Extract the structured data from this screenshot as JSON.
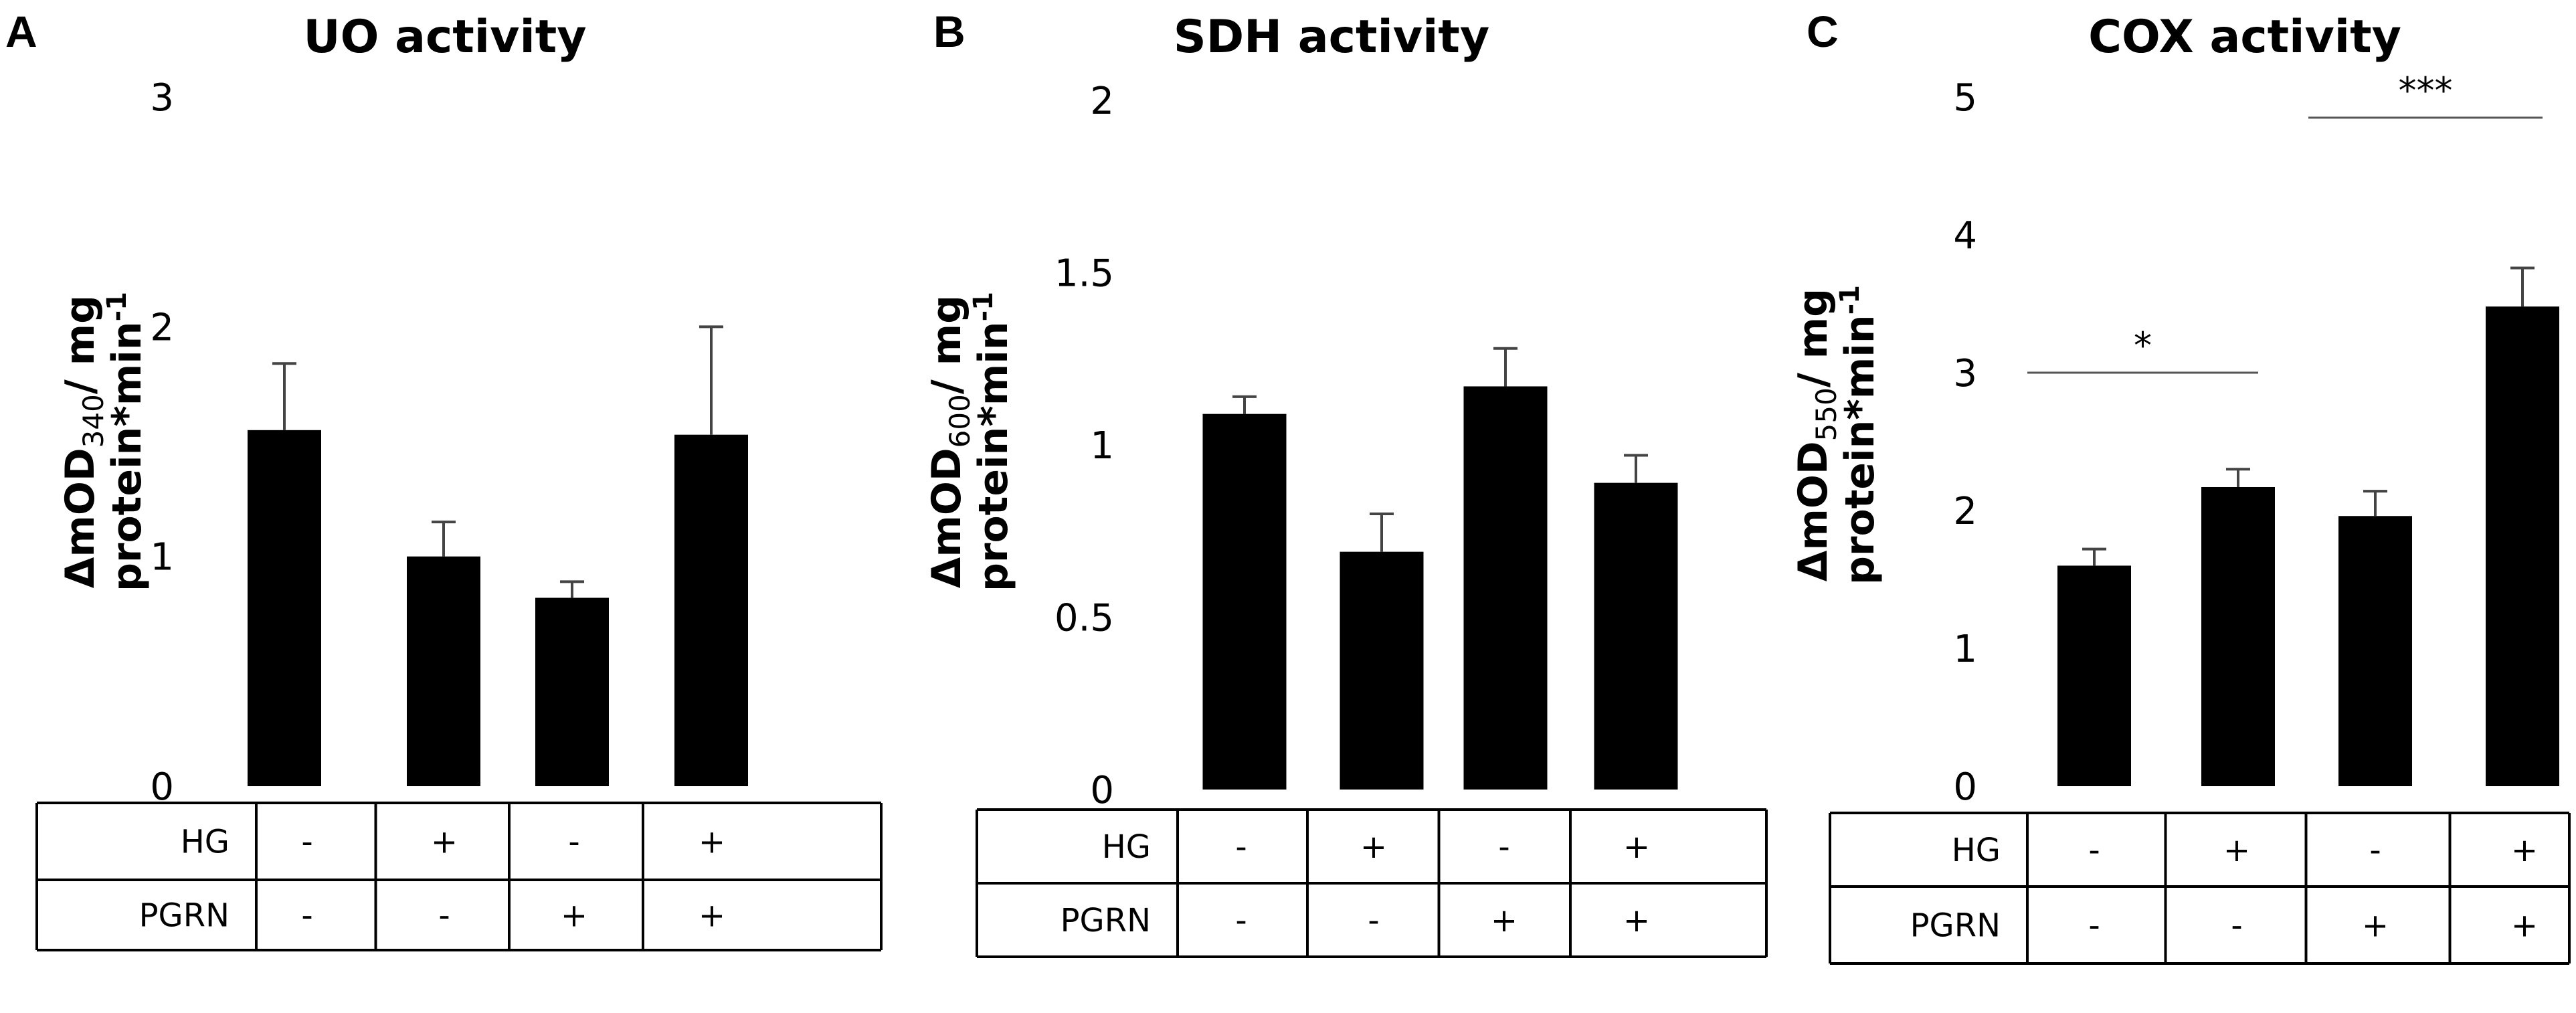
{
  "chart_data": [
    {
      "type": "bar",
      "panel_label": "A",
      "title": "UO activity",
      "ylabel_parts": [
        "ΔmOD",
        "340",
        "/ mg",
        "protein*min",
        "-1"
      ],
      "ylim": [
        0,
        3
      ],
      "yticks": [
        "0",
        "1",
        "2",
        "3"
      ],
      "grid": false,
      "values": [
        1.55,
        1.0,
        0.82,
        1.53
      ],
      "errors": [
        0.29,
        0.15,
        0.07,
        0.47
      ],
      "conditions": [
        {
          "label": "HG",
          "values": [
            "-",
            "+",
            "-",
            "+"
          ]
        },
        {
          "label": "PGRN",
          "values": [
            "-",
            "-",
            "+",
            "+"
          ]
        }
      ],
      "significance": []
    },
    {
      "type": "bar",
      "panel_label": "B",
      "title": "SDH activity",
      "ylabel_parts": [
        "ΔmOD",
        "600",
        "/ mg",
        "protein*min",
        "-1"
      ],
      "ylim": [
        0,
        2
      ],
      "yticks": [
        "0",
        "0.5",
        "1",
        "1.5",
        "2"
      ],
      "grid": false,
      "values": [
        1.09,
        0.69,
        1.17,
        0.89
      ],
      "errors": [
        0.05,
        0.11,
        0.11,
        0.08
      ],
      "conditions": [
        {
          "label": "HG",
          "values": [
            "-",
            "+",
            "-",
            "+"
          ]
        },
        {
          "label": "PGRN",
          "values": [
            "-",
            "-",
            "+",
            "+"
          ]
        }
      ],
      "significance": []
    },
    {
      "type": "bar",
      "panel_label": "C",
      "title": "COX activity",
      "ylabel_parts": [
        "ΔmOD",
        "550",
        "/ mg",
        "protein*min",
        "-1"
      ],
      "ylim": [
        0,
        5
      ],
      "yticks": [
        "0",
        "1",
        "2",
        "3",
        "4",
        "5"
      ],
      "grid": false,
      "values": [
        1.6,
        2.17,
        1.96,
        3.48
      ],
      "errors": [
        0.12,
        0.13,
        0.18,
        0.28
      ],
      "conditions": [
        {
          "label": "HG",
          "values": [
            "-",
            "+",
            "-",
            "+"
          ]
        },
        {
          "label": "PGRN",
          "values": [
            "-",
            "-",
            "+",
            "+"
          ]
        }
      ],
      "significance": [
        {
          "label": "*",
          "from": 0,
          "to": 1,
          "y": 3.0
        },
        {
          "label": "***",
          "from": 2,
          "to": 3,
          "y": 4.85
        }
      ]
    }
  ]
}
